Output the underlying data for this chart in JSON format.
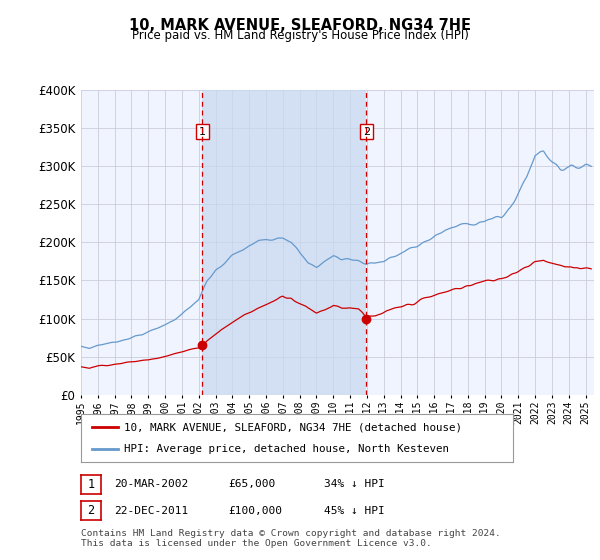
{
  "title": "10, MARK AVENUE, SLEAFORD, NG34 7HE",
  "subtitle": "Price paid vs. HM Land Registry's House Price Index (HPI)",
  "legend_line1": "10, MARK AVENUE, SLEAFORD, NG34 7HE (detached house)",
  "legend_line2": "HPI: Average price, detached house, North Kesteven",
  "annotation1": {
    "label": "1",
    "date": "20-MAR-2002",
    "price": "£65,000",
    "hpi": "34% ↓ HPI",
    "x_year": 2002.22,
    "y": 65000
  },
  "annotation2": {
    "label": "2",
    "date": "22-DEC-2011",
    "price": "£100,000",
    "hpi": "45% ↓ HPI",
    "x_year": 2011.97,
    "y": 100000
  },
  "footer1": "Contains HM Land Registry data © Crown copyright and database right 2024.",
  "footer2": "This data is licensed under the Open Government Licence v3.0.",
  "ylim": [
    0,
    400000
  ],
  "yticks": [
    0,
    50000,
    100000,
    150000,
    200000,
    250000,
    300000,
    350000,
    400000
  ],
  "ytick_labels": [
    "£0",
    "£50K",
    "£100K",
    "£150K",
    "£200K",
    "£250K",
    "£300K",
    "£350K",
    "£400K"
  ],
  "plot_bg_color": "#f0f4ff",
  "hpi_color": "#6699cc",
  "price_color": "#cc0000",
  "vline_color": "#cc0000",
  "shade_color": "#c8d8ee",
  "grid_color": "#ccccdd",
  "xlim_start": 1995.0,
  "xlim_end": 2025.5
}
